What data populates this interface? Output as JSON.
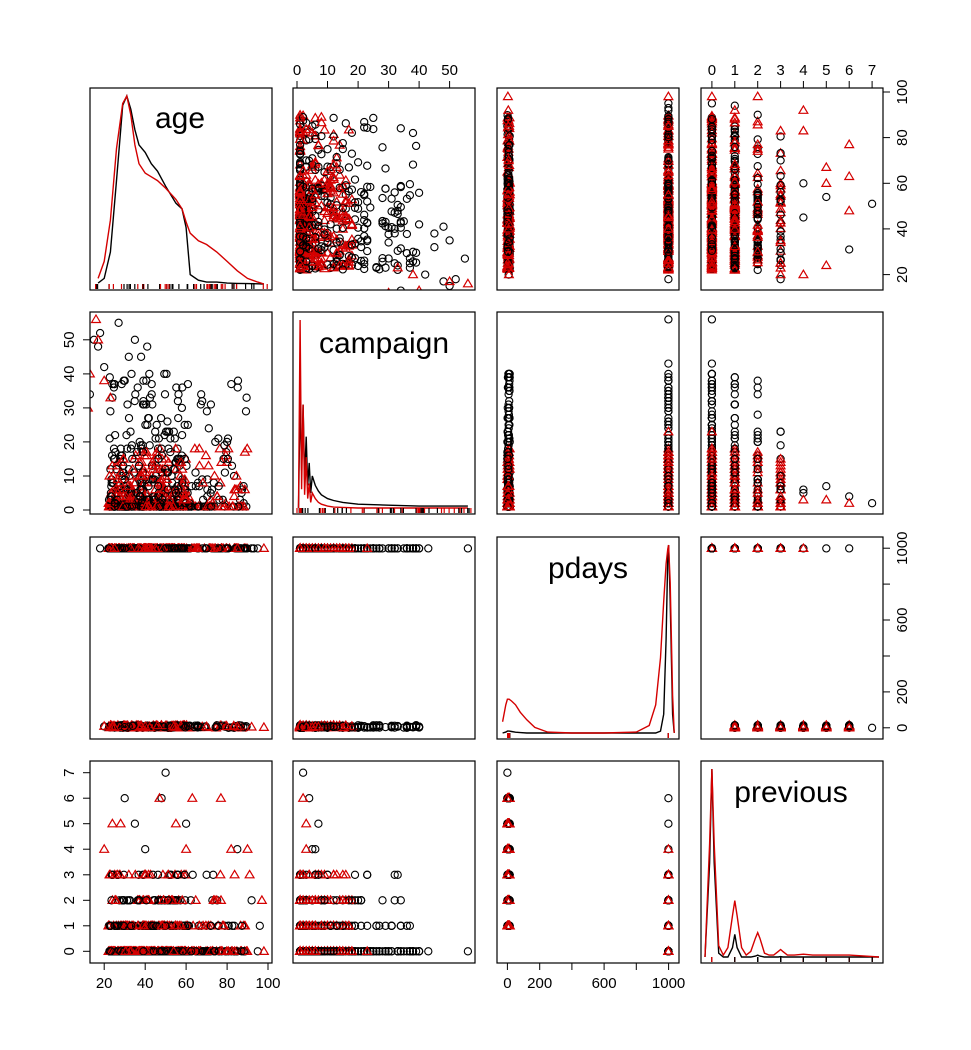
{
  "chart_data": {
    "type": "scatter-matrix",
    "title": "",
    "variables": [
      "age",
      "campaign",
      "pdays",
      "previous"
    ],
    "groups": [
      {
        "color": "#000000",
        "marker": "circle"
      },
      {
        "color": "#d40000",
        "marker": "triangle"
      }
    ],
    "axes": {
      "age": {
        "range": [
          15,
          100
        ],
        "ticks": [
          20,
          40,
          60,
          80,
          100
        ],
        "tick_labels": [
          "20",
          "40",
          "60",
          "80",
          "100"
        ],
        "labeled_side": "bottom"
      },
      "campaign": {
        "range": [
          0,
          57
        ],
        "ticks": [
          0,
          10,
          20,
          30,
          40,
          50
        ],
        "tick_labels": [
          "0",
          "10",
          "20",
          "30",
          "40",
          "50"
        ],
        "labeled_side": "top"
      },
      "pdays": {
        "range": [
          -40,
          1040
        ],
        "ticks": [
          0,
          200,
          600,
          1000
        ],
        "minor_ticks": [
          400,
          800
        ],
        "tick_labels": [
          "0",
          "200",
          "600",
          "1000"
        ],
        "labeled_side": "bottom"
      },
      "previous": {
        "range": [
          -0.3,
          7.3
        ],
        "ticks": [
          0,
          1,
          2,
          3,
          4,
          5,
          6,
          7
        ],
        "tick_labels": [
          "0",
          "1",
          "2",
          "3",
          "4",
          "5",
          "6",
          "7"
        ],
        "labeled_side": "top"
      }
    },
    "row_axes": {
      "age": {
        "ticks": [
          20,
          40,
          60,
          80,
          100
        ],
        "tick_labels": [
          "20",
          "40",
          "60",
          "80",
          "100"
        ],
        "labeled_side": "right"
      },
      "campaign": {
        "ticks": [
          0,
          10,
          20,
          30,
          40,
          50
        ],
        "tick_labels": [
          "0",
          "10",
          "20",
          "30",
          "40",
          "50"
        ],
        "labeled_side": "left"
      },
      "pdays": {
        "ticks": [
          0,
          200,
          600,
          1000
        ],
        "minor_ticks": [
          400,
          800
        ],
        "tick_labels": [
          "0",
          "200",
          "600",
          "1000"
        ],
        "labeled_side": "right"
      },
      "previous": {
        "ticks": [
          0,
          1,
          2,
          3,
          4,
          5,
          6,
          7
        ],
        "tick_labels": [
          "0",
          "1",
          "2",
          "3",
          "4",
          "5",
          "6",
          "7"
        ],
        "labeled_side": "left"
      }
    },
    "density": {
      "age": {
        "x": [
          17,
          20,
          23,
          26,
          29,
          31,
          33,
          35,
          37,
          40,
          43,
          46,
          50,
          55,
          58,
          60,
          62,
          66,
          70,
          75,
          80,
          85,
          90,
          95,
          98
        ],
        "group0": [
          0.005,
          0.03,
          0.17,
          0.55,
          0.95,
          1.0,
          0.93,
          0.82,
          0.74,
          0.7,
          0.64,
          0.6,
          0.52,
          0.43,
          0.4,
          0.3,
          0.05,
          0.02,
          0.01,
          0.01,
          0.005,
          0.003,
          0.002,
          0.001,
          0.0
        ],
        "group1": [
          0.03,
          0.12,
          0.34,
          0.72,
          0.96,
          1.0,
          0.9,
          0.74,
          0.64,
          0.59,
          0.57,
          0.55,
          0.51,
          0.45,
          0.4,
          0.33,
          0.27,
          0.23,
          0.21,
          0.17,
          0.12,
          0.07,
          0.03,
          0.01,
          0.0
        ]
      },
      "campaign": {
        "x": [
          0.5,
          1,
          1.5,
          2,
          2.5,
          3,
          3.5,
          4,
          4.5,
          5,
          6,
          7,
          8,
          10,
          12,
          15,
          20,
          30,
          40,
          56
        ],
        "group0": [
          0.0,
          0.58,
          0.2,
          0.55,
          0.15,
          0.38,
          0.12,
          0.24,
          0.08,
          0.17,
          0.12,
          0.09,
          0.07,
          0.05,
          0.04,
          0.03,
          0.02,
          0.015,
          0.01,
          0.01
        ],
        "group1": [
          0.0,
          1.0,
          0.1,
          0.55,
          0.07,
          0.27,
          0.05,
          0.13,
          0.03,
          0.08,
          0.05,
          0.03,
          0.02,
          0.01,
          0.005,
          0.003,
          0.0,
          0.0,
          0.0,
          0.0
        ]
      },
      "pdays": {
        "x": [
          -30,
          -10,
          0,
          10,
          25,
          50,
          80,
          120,
          170,
          250,
          400,
          600,
          800,
          880,
          920,
          950,
          970,
          985,
          995,
          1000,
          1010,
          1025,
          1035
        ],
        "group0": [
          0.0,
          0.005,
          0.01,
          0.01,
          0.008,
          0.004,
          0.002,
          0.0,
          0.0,
          0.0,
          0.0,
          0.0,
          0.0,
          0.0,
          0.0,
          0.01,
          0.1,
          0.5,
          0.95,
          1.0,
          0.7,
          0.1,
          0.0
        ],
        "group1": [
          0.06,
          0.15,
          0.18,
          0.18,
          0.17,
          0.15,
          0.11,
          0.07,
          0.03,
          0.005,
          0.0,
          0.0,
          0.005,
          0.04,
          0.15,
          0.4,
          0.7,
          0.9,
          0.98,
          1.0,
          0.8,
          0.2,
          0.0
        ]
      },
      "previous": {
        "x": [
          -0.3,
          -0.1,
          0,
          0.1,
          0.3,
          0.5,
          0.7,
          0.9,
          1,
          1.1,
          1.3,
          1.5,
          1.7,
          1.9,
          2,
          2.1,
          2.3,
          2.5,
          2.7,
          2.9,
          3,
          3.1,
          3.3,
          3.6,
          4,
          4.4,
          5,
          6,
          7.3
        ],
        "group0": [
          0.0,
          0.5,
          1.0,
          0.5,
          0.02,
          0.0,
          0.0,
          0.05,
          0.12,
          0.05,
          0.0,
          0.0,
          0.0,
          0.005,
          0.01,
          0.005,
          0.0,
          0.0,
          0.0,
          0.0,
          0.002,
          0.0,
          0.0,
          0.0,
          0.0,
          0.0,
          0.0,
          0.0,
          0.0
        ],
        "group1": [
          0.0,
          0.6,
          1.0,
          0.6,
          0.06,
          0.01,
          0.05,
          0.22,
          0.3,
          0.22,
          0.05,
          0.01,
          0.03,
          0.1,
          0.13,
          0.1,
          0.02,
          0.01,
          0.01,
          0.03,
          0.04,
          0.03,
          0.01,
          0.01,
          0.015,
          0.01,
          0.01,
          0.01,
          0.0
        ]
      }
    },
    "scatter": {
      "age_campaign": {
        "group0": [
          [
            56,
            32
          ],
          [
            42,
            40
          ],
          [
            41,
            48
          ],
          [
            30,
            38
          ],
          [
            38,
            45
          ],
          [
            35,
            50
          ],
          [
            27,
            55
          ],
          [
            32,
            45
          ],
          [
            33,
            60
          ],
          [
            22,
            65
          ],
          [
            15,
            70
          ],
          [
            11,
            85
          ],
          [
            15,
            50
          ],
          [
            11,
            44
          ],
          [
            18,
            52
          ],
          [
            23,
            29
          ],
          [
            24,
            33
          ],
          [
            25,
            37
          ],
          [
            20,
            42
          ],
          [
            17,
            48
          ],
          [
            13,
            34
          ],
          [
            10,
            75
          ],
          [
            8,
            80
          ],
          [
            6,
            88
          ],
          [
            5,
            20
          ],
          [
            3,
            92
          ],
          [
            2,
            95
          ]
        ],
        "group1": [
          [
            23,
            33
          ],
          [
            20,
            38
          ],
          [
            17,
            50
          ],
          [
            16,
            56
          ],
          [
            12,
            30
          ],
          [
            11,
            77
          ],
          [
            10,
            42
          ],
          [
            8,
            63
          ],
          [
            8,
            85
          ],
          [
            6,
            88
          ],
          [
            5,
            91
          ],
          [
            4,
            95
          ],
          [
            3,
            97
          ],
          [
            2,
            92
          ],
          [
            1,
            98
          ],
          [
            7,
            25
          ],
          [
            6,
            22
          ],
          [
            9,
            46
          ],
          [
            13,
            40
          ],
          [
            14,
            60
          ]
        ]
      },
      "pdays_age": {
        "group0": [
          [
            999,
            95
          ],
          [
            999,
            93
          ],
          [
            999,
            92
          ],
          [
            999,
            88
          ],
          [
            999,
            84
          ],
          [
            999,
            70
          ],
          [
            999,
            50
          ],
          [
            999,
            30
          ],
          [
            999,
            18
          ],
          [
            3,
            88
          ],
          [
            6,
            75
          ],
          [
            10,
            60
          ],
          [
            4,
            30
          ],
          [
            8,
            20
          ]
        ],
        "group1": [
          [
            999,
            98
          ],
          [
            999,
            85
          ],
          [
            999,
            65
          ],
          [
            999,
            45
          ],
          [
            999,
            25
          ],
          [
            3,
            98
          ],
          [
            5,
            92
          ],
          [
            6,
            85
          ],
          [
            7,
            70
          ],
          [
            4,
            55
          ],
          [
            8,
            40
          ],
          [
            2,
            25
          ],
          [
            9,
            20
          ]
        ]
      },
      "previous_age": {
        "group0": [
          [
            7,
            51
          ],
          [
            6,
            31
          ],
          [
            5,
            54
          ],
          [
            4,
            60
          ],
          [
            4,
            45
          ],
          [
            3,
            70
          ],
          [
            3,
            18
          ],
          [
            2,
            90
          ],
          [
            1,
            94
          ],
          [
            0,
            95
          ]
        ],
        "group1": [
          [
            0,
            98
          ],
          [
            1,
            92
          ],
          [
            2,
            98
          ],
          [
            3,
            83
          ],
          [
            4,
            92
          ],
          [
            4,
            83
          ],
          [
            4,
            20
          ],
          [
            5,
            67
          ],
          [
            5,
            60
          ],
          [
            5,
            24
          ],
          [
            6,
            77
          ],
          [
            6,
            63
          ],
          [
            6,
            48
          ],
          [
            3,
            20
          ],
          [
            2,
            30
          ]
        ]
      },
      "campaign_pdays": {
        "group0": [
          [
            56,
            999
          ],
          [
            43,
            999
          ],
          [
            40,
            999
          ],
          [
            35,
            999
          ],
          [
            30,
            999
          ],
          [
            13,
            6
          ],
          [
            12,
            5
          ],
          [
            10,
            4
          ],
          [
            9,
            3
          ],
          [
            8,
            2
          ]
        ],
        "group1": [
          [
            23,
            999
          ],
          [
            17,
            999
          ],
          [
            14,
            999
          ],
          [
            7,
            5
          ],
          [
            5,
            3
          ],
          [
            3,
            2
          ]
        ]
      },
      "campaign_previous": {
        "group0": [
          [
            56,
            0
          ],
          [
            43,
            0
          ],
          [
            40,
            0
          ],
          [
            35,
            0
          ],
          [
            28,
            0
          ],
          [
            13,
            1
          ],
          [
            11,
            1
          ],
          [
            9,
            2
          ],
          [
            7,
            3
          ],
          [
            6,
            4
          ],
          [
            7,
            5
          ],
          [
            5,
            4
          ],
          [
            4,
            6
          ],
          [
            2,
            7
          ]
        ],
        "group1": [
          [
            23,
            0
          ],
          [
            18,
            0
          ],
          [
            15,
            0
          ],
          [
            8,
            1
          ],
          [
            6,
            1
          ],
          [
            5,
            2
          ],
          [
            4,
            3
          ],
          [
            3,
            4
          ],
          [
            3,
            5
          ],
          [
            2,
            6
          ],
          [
            2,
            2
          ]
        ]
      },
      "pdays_previous": {
        "group0": [
          [
            0,
            7
          ],
          [
            999,
            6
          ],
          [
            999,
            5
          ],
          [
            999,
            4
          ],
          [
            999,
            3
          ],
          [
            999,
            2
          ],
          [
            999,
            1
          ],
          [
            0,
            2
          ],
          [
            0,
            3
          ]
        ],
        "group1": [
          [
            0,
            6
          ],
          [
            0,
            5
          ],
          [
            0,
            4
          ],
          [
            0,
            3
          ],
          [
            0,
            2
          ],
          [
            0,
            1
          ],
          [
            999,
            4
          ],
          [
            999,
            3
          ],
          [
            999,
            2
          ],
          [
            999,
            1
          ]
        ]
      },
      "age_previous": {
        "group0": [
          [
            50,
            7
          ],
          [
            48,
            6
          ],
          [
            30,
            6
          ],
          [
            85,
            4
          ],
          [
            92,
            2
          ],
          [
            95,
            0
          ],
          [
            96,
            1
          ],
          [
            60,
            5
          ],
          [
            40,
            4
          ],
          [
            35,
            5
          ],
          [
            70,
            3
          ]
        ],
        "group1": [
          [
            77,
            6
          ],
          [
            63,
            6
          ],
          [
            47,
            6
          ],
          [
            55,
            5
          ],
          [
            28,
            5
          ],
          [
            24,
            5
          ],
          [
            20,
            4
          ],
          [
            82,
            4
          ],
          [
            90,
            4
          ],
          [
            98,
            0
          ],
          [
            97,
            2
          ],
          [
            91,
            3
          ],
          [
            60,
            4
          ]
        ]
      }
    }
  }
}
